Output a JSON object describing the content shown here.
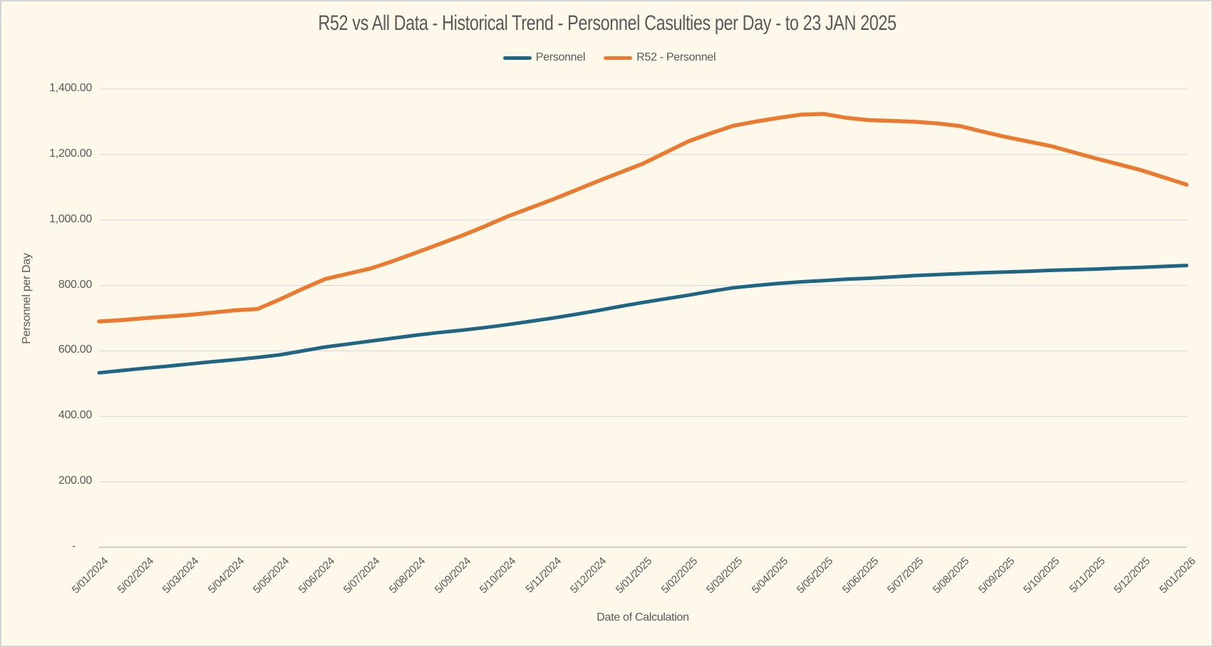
{
  "style": {
    "background": "#fdf8ea",
    "border": "#d5d5d5",
    "grid_line": "#dadada",
    "axis_line": "#c0c0c0",
    "text": "#595959"
  },
  "chart_data": {
    "type": "line",
    "title": "R52 vs All Data - Historical Trend - Personnel Casulties per Day - to 23 JAN 2025",
    "xlabel": "Date of Calculation",
    "ylabel": "Personnel per Day",
    "ylim": [
      0,
      1400
    ],
    "ytick_step": 200,
    "ytick_labels_top_to_bottom": [
      "1,400.00",
      "1,200.00",
      "1,000.00",
      "800.00",
      "600.00",
      "400.00",
      "200.00",
      "-"
    ],
    "x_tick_labels": [
      "5/01/2024",
      "5/02/2024",
      "5/03/2024",
      "5/04/2024",
      "5/05/2024",
      "5/06/2024",
      "5/07/2024",
      "5/08/2024",
      "5/09/2024",
      "5/10/2024",
      "5/11/2024",
      "5/12/2024",
      "5/01/2025",
      "5/02/2025",
      "5/03/2025",
      "5/04/2025",
      "5/05/2025",
      "5/06/2025",
      "5/07/2025",
      "5/08/2025",
      "5/09/2025",
      "5/10/2025",
      "5/11/2025",
      "5/12/2025",
      "5/01/2026"
    ],
    "samples_per_tick_interval": 2,
    "grid": true,
    "legend_position": "top",
    "series": [
      {
        "name": "Personnel",
        "color": "#1f6584",
        "stroke_width": 5,
        "values": [
          533,
          540,
          547,
          553,
          560,
          567,
          573,
          580,
          588,
          600,
          612,
          621,
          630,
          639,
          648,
          656,
          663,
          671,
          680,
          690,
          700,
          711,
          723,
          736,
          748,
          759,
          770,
          782,
          793,
          800,
          806,
          811,
          815,
          819,
          822,
          826,
          830,
          833,
          836,
          839,
          841,
          843,
          846,
          848,
          850,
          853,
          855,
          858,
          861
        ]
      },
      {
        "name": "R52 - Personnel",
        "color": "#eb7a30",
        "stroke_width": 5.5,
        "values": [
          690,
          694,
          700,
          705,
          710,
          717,
          724,
          728,
          758,
          790,
          820,
          836,
          852,
          875,
          900,
          926,
          952,
          980,
          1010,
          1036,
          1062,
          1090,
          1118,
          1145,
          1172,
          1206,
          1240,
          1265,
          1288,
          1301,
          1312,
          1322,
          1324,
          1312,
          1305,
          1303,
          1300,
          1295,
          1287,
          1270,
          1254,
          1240,
          1226,
          1207,
          1188,
          1170,
          1152,
          1130,
          1108
        ]
      }
    ]
  }
}
